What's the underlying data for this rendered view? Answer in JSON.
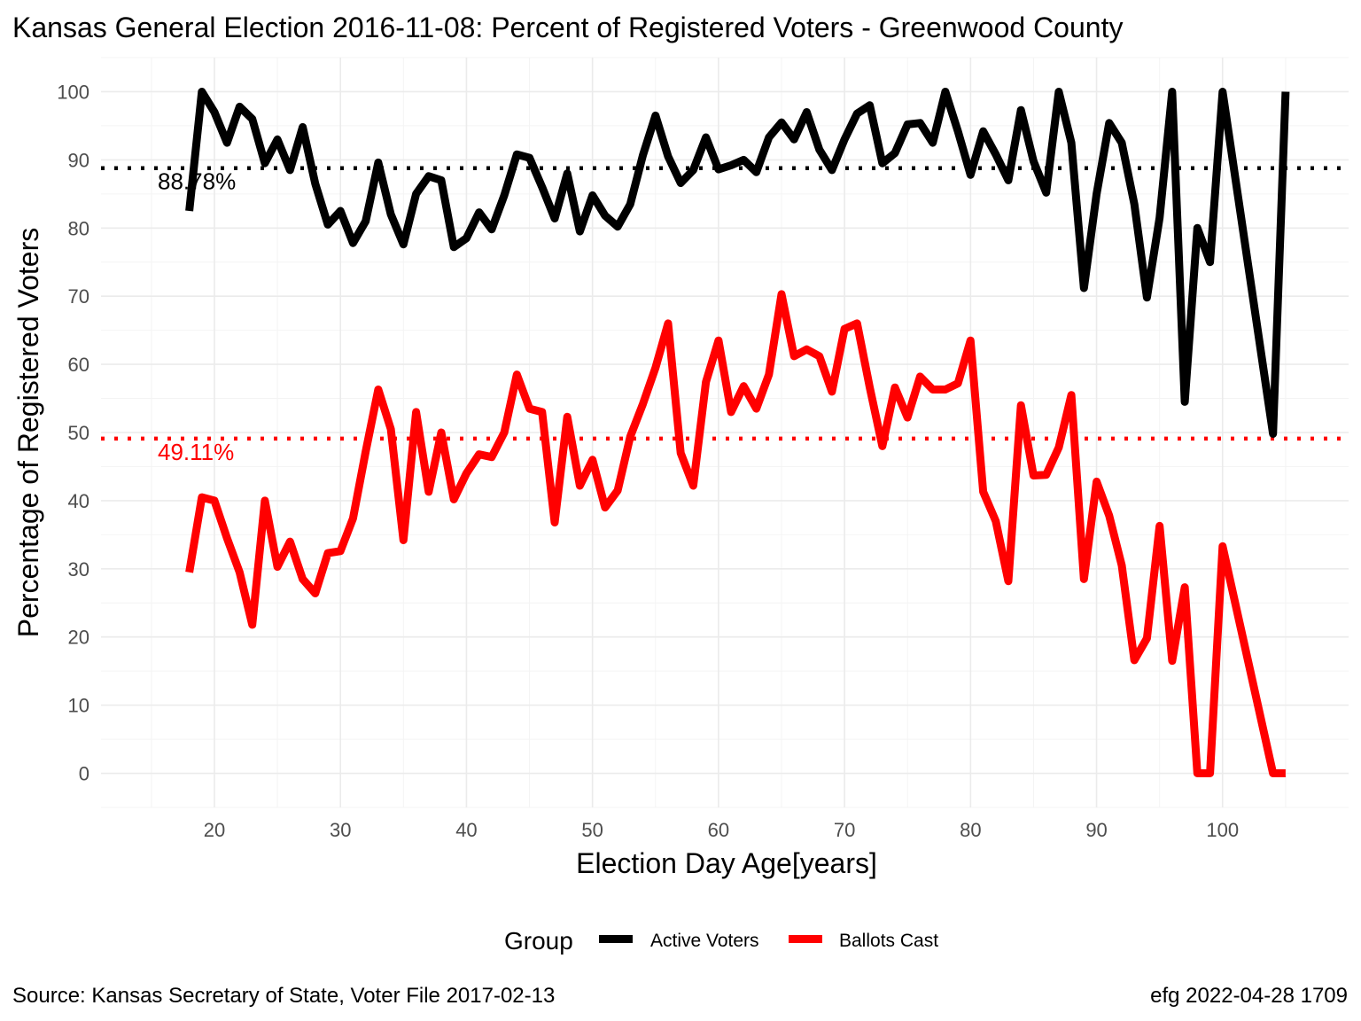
{
  "chart_data": {
    "type": "line",
    "title": "Kansas General Election 2016-11-08:  Percent of Registered Voters - Greenwood County",
    "xlabel": "Election Day Age[years]",
    "ylabel": "Percentage of Registered Voters",
    "xlim": [
      11,
      110
    ],
    "ylim": [
      -5,
      105
    ],
    "x_ticks": [
      20,
      30,
      40,
      50,
      60,
      70,
      80,
      90,
      100
    ],
    "y_ticks": [
      0,
      10,
      20,
      30,
      40,
      50,
      60,
      70,
      80,
      90,
      100
    ],
    "grid": true,
    "legend": {
      "title": "Group",
      "position": "bottom",
      "entries": [
        {
          "label": "Active Voters",
          "color": "#000000"
        },
        {
          "label": "Ballots Cast",
          "color": "#ff0000"
        }
      ]
    },
    "reference_lines": [
      {
        "y": 88.78,
        "label": "88.78%",
        "color": "#000000"
      },
      {
        "y": 49.11,
        "label": "49.11%",
        "color": "#ff0000"
      }
    ],
    "series": [
      {
        "name": "Active Voters",
        "color": "#000000",
        "x": [
          18,
          19,
          20,
          21,
          22,
          23,
          24,
          25,
          26,
          27,
          28,
          29,
          30,
          31,
          32,
          33,
          34,
          35,
          36,
          37,
          38,
          39,
          40,
          41,
          42,
          43,
          44,
          45,
          46,
          47,
          48,
          49,
          50,
          51,
          52,
          53,
          54,
          55,
          56,
          57,
          58,
          59,
          60,
          61,
          62,
          63,
          64,
          65,
          66,
          67,
          68,
          69,
          70,
          71,
          72,
          73,
          74,
          75,
          76,
          77,
          78,
          79,
          80,
          81,
          82,
          83,
          84,
          85,
          86,
          87,
          88,
          89,
          90,
          91,
          92,
          93,
          94,
          95,
          96,
          97,
          98,
          99,
          100,
          104,
          105
        ],
        "y": [
          82.5,
          100,
          97,
          92.5,
          97.8,
          96,
          89.5,
          93,
          88.5,
          94.8,
          86.5,
          80.5,
          82.5,
          77.8,
          81,
          89.6,
          82,
          77.6,
          85,
          87.6,
          87,
          77.2,
          78.5,
          82.3,
          79.8,
          84.8,
          90.8,
          90.3,
          86,
          81.4,
          88,
          79.5,
          84.8,
          81.8,
          80.2,
          83.5,
          90.7,
          96.5,
          90.5,
          86.6,
          88.5,
          93.3,
          88.6,
          89.2,
          90,
          88.2,
          93.3,
          95.5,
          93,
          97,
          91.5,
          88.5,
          93,
          96.8,
          98,
          89.5,
          91,
          95.2,
          95.4,
          92.5,
          100,
          94.2,
          87.8,
          94.2,
          90.8,
          87,
          97.3,
          89.8,
          85.2,
          100,
          92.5,
          71.2,
          85,
          95.4,
          92.5,
          83.5,
          69.8,
          81.5,
          100,
          54.5,
          80,
          75,
          100,
          49.8,
          100
        ]
      },
      {
        "name": "Ballots Cast",
        "color": "#ff0000",
        "x": [
          18,
          19,
          20,
          21,
          22,
          23,
          24,
          25,
          26,
          27,
          28,
          29,
          30,
          31,
          32,
          33,
          34,
          35,
          36,
          37,
          38,
          39,
          40,
          41,
          42,
          43,
          44,
          45,
          46,
          47,
          48,
          49,
          50,
          51,
          52,
          53,
          54,
          55,
          56,
          57,
          58,
          59,
          60,
          61,
          62,
          63,
          64,
          65,
          66,
          67,
          68,
          69,
          70,
          71,
          72,
          73,
          74,
          75,
          76,
          77,
          78,
          79,
          80,
          81,
          82,
          83,
          84,
          85,
          86,
          87,
          88,
          89,
          90,
          91,
          92,
          93,
          94,
          95,
          96,
          97,
          98,
          99,
          100,
          104,
          105
        ],
        "y": [
          29.5,
          40.5,
          40,
          34.5,
          29.5,
          21.8,
          40,
          30.3,
          34,
          28.5,
          26.4,
          32.3,
          32.6,
          37.4,
          47.2,
          56.3,
          50.5,
          34.2,
          53,
          41.3,
          50,
          40.2,
          44,
          46.8,
          46.4,
          50,
          58.5,
          53.5,
          53,
          36.8,
          52.3,
          42.2,
          46,
          39,
          41.5,
          49.4,
          54.2,
          59.5,
          66,
          47,
          42.2,
          57.4,
          63.5,
          53,
          56.8,
          53.5,
          58.5,
          70.3,
          61.2,
          62.2,
          61.2,
          56,
          65.2,
          66,
          56.6,
          48,
          56.6,
          52.2,
          58.2,
          56.3,
          56.3,
          57.2,
          63.5,
          41.3,
          37,
          28.2,
          54,
          43.7,
          43.8,
          47.8,
          55.5,
          28.5,
          42.8,
          37.8,
          30.5,
          16.6,
          19.8,
          36.3,
          16.5,
          27.3,
          0,
          0,
          33.3,
          0,
          0
        ]
      }
    ]
  },
  "caption": {
    "source": "Source:  Kansas Secretary of State, Voter File  2017-02-13",
    "credit": "efg 2022-04-28 1709"
  }
}
